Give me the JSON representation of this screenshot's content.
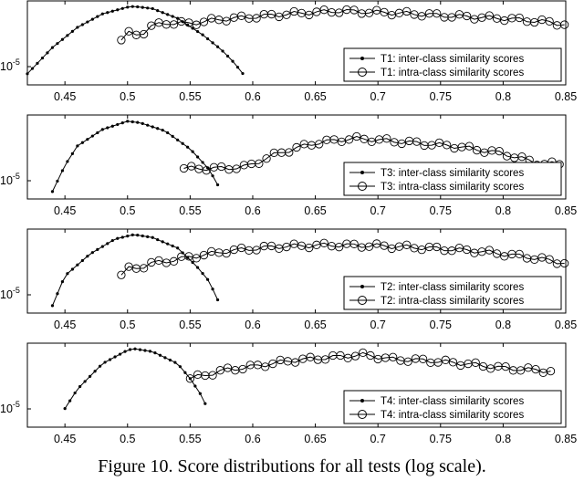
{
  "caption": "Figure 10. Score distributions for all tests (log scale).",
  "chart_data": [
    {
      "type": "line",
      "xlim": [
        0.42,
        0.85
      ],
      "y_scale": "log",
      "x_ticks": [
        "0.45",
        "0.5",
        "0.55",
        "0.6",
        "0.65",
        "0.7",
        "0.75",
        "0.8",
        "0.85"
      ],
      "y_tick_labels": [
        "10",
        "-5"
      ],
      "legend_position": "bottom-right",
      "series": [
        {
          "name": "T1: inter-class similarity scores",
          "marker": "dot",
          "x": [
            0.42,
            0.44,
            0.46,
            0.48,
            0.5,
            0.505,
            0.52,
            0.54,
            0.56,
            0.575,
            0.585,
            0.595
          ],
          "y": [
            0.1,
            0.45,
            0.72,
            0.9,
            0.99,
            1.0,
            0.97,
            0.84,
            0.62,
            0.42,
            0.25,
            0.04
          ]
        },
        {
          "name": "T1: intra-class similarity scores",
          "marker": "circle",
          "x": [
            0.495,
            0.5,
            0.51,
            0.52,
            0.53,
            0.55,
            0.57,
            0.6,
            0.63,
            0.67,
            0.7,
            0.73,
            0.76,
            0.8,
            0.83,
            0.85
          ],
          "y": [
            0.55,
            0.64,
            0.62,
            0.74,
            0.78,
            0.77,
            0.82,
            0.86,
            0.9,
            0.94,
            0.92,
            0.9,
            0.87,
            0.84,
            0.8,
            0.76
          ]
        }
      ]
    },
    {
      "type": "line",
      "xlim": [
        0.42,
        0.85
      ],
      "y_scale": "log",
      "x_ticks": [
        "0.45",
        "0.5",
        "0.55",
        "0.6",
        "0.65",
        "0.7",
        "0.75",
        "0.8",
        "0.85"
      ],
      "y_tick_labels": [
        "10",
        "-5"
      ],
      "legend_position": "bottom-right",
      "series": [
        {
          "name": "T3: inter-class similarity scores",
          "marker": "dot",
          "x": [
            0.44,
            0.45,
            0.46,
            0.48,
            0.5,
            0.51,
            0.53,
            0.55,
            0.565,
            0.575
          ],
          "y": [
            0.05,
            0.4,
            0.66,
            0.88,
            0.99,
            0.97,
            0.86,
            0.62,
            0.35,
            0.05
          ]
        },
        {
          "name": "T3: intra-class similarity scores",
          "marker": "circle",
          "x": [
            0.545,
            0.575,
            0.595,
            0.62,
            0.65,
            0.68,
            0.7,
            0.73,
            0.76,
            0.8,
            0.83,
            0.845
          ],
          "y": [
            0.36,
            0.36,
            0.38,
            0.56,
            0.7,
            0.76,
            0.74,
            0.7,
            0.66,
            0.56,
            0.42,
            0.42
          ]
        }
      ]
    },
    {
      "type": "line",
      "xlim": [
        0.42,
        0.85
      ],
      "y_scale": "log",
      "x_ticks": [
        "0.45",
        "0.5",
        "0.55",
        "0.6",
        "0.65",
        "0.7",
        "0.75",
        "0.8",
        "0.85"
      ],
      "y_tick_labels": [
        "10",
        "-5"
      ],
      "legend_position": "bottom-right",
      "series": [
        {
          "name": "T2: inter-class similarity scores",
          "marker": "dot",
          "x": [
            0.44,
            0.45,
            0.47,
            0.49,
            0.505,
            0.52,
            0.54,
            0.555,
            0.565,
            0.575
          ],
          "y": [
            0.05,
            0.45,
            0.74,
            0.94,
            1.0,
            0.96,
            0.82,
            0.58,
            0.38,
            0.02
          ]
        },
        {
          "name": "T2: intra-class similarity scores",
          "marker": "circle",
          "x": [
            0.495,
            0.5,
            0.51,
            0.52,
            0.53,
            0.55,
            0.58,
            0.62,
            0.66,
            0.7,
            0.74,
            0.78,
            0.82,
            0.85
          ],
          "y": [
            0.46,
            0.54,
            0.56,
            0.62,
            0.64,
            0.7,
            0.78,
            0.84,
            0.86,
            0.85,
            0.82,
            0.78,
            0.7,
            0.62
          ]
        }
      ]
    },
    {
      "type": "line",
      "xlim": [
        0.42,
        0.85
      ],
      "y_scale": "log",
      "x_ticks": [
        "0.45",
        "0.5",
        "0.55",
        "0.6",
        "0.65",
        "0.7",
        "0.75",
        "0.8",
        "0.85"
      ],
      "y_tick_labels": [
        "10",
        "-5"
      ],
      "legend_position": "bottom-right",
      "series": [
        {
          "name": "T4: inter-class similarity scores",
          "marker": "dot",
          "x": [
            0.45,
            0.46,
            0.48,
            0.5,
            0.505,
            0.52,
            0.54,
            0.55,
            0.56,
            0.565
          ],
          "y": [
            0.2,
            0.46,
            0.8,
            0.98,
            1.0,
            0.96,
            0.8,
            0.6,
            0.35,
            0.14
          ]
        },
        {
          "name": "T4: intra-class similarity scores",
          "marker": "circle",
          "x": [
            0.55,
            0.58,
            0.6,
            0.63,
            0.66,
            0.69,
            0.71,
            0.74,
            0.77,
            0.8,
            0.82,
            0.84
          ],
          "y": [
            0.6,
            0.72,
            0.76,
            0.84,
            0.88,
            0.92,
            0.86,
            0.84,
            0.8,
            0.74,
            0.72,
            0.7
          ]
        }
      ]
    }
  ]
}
